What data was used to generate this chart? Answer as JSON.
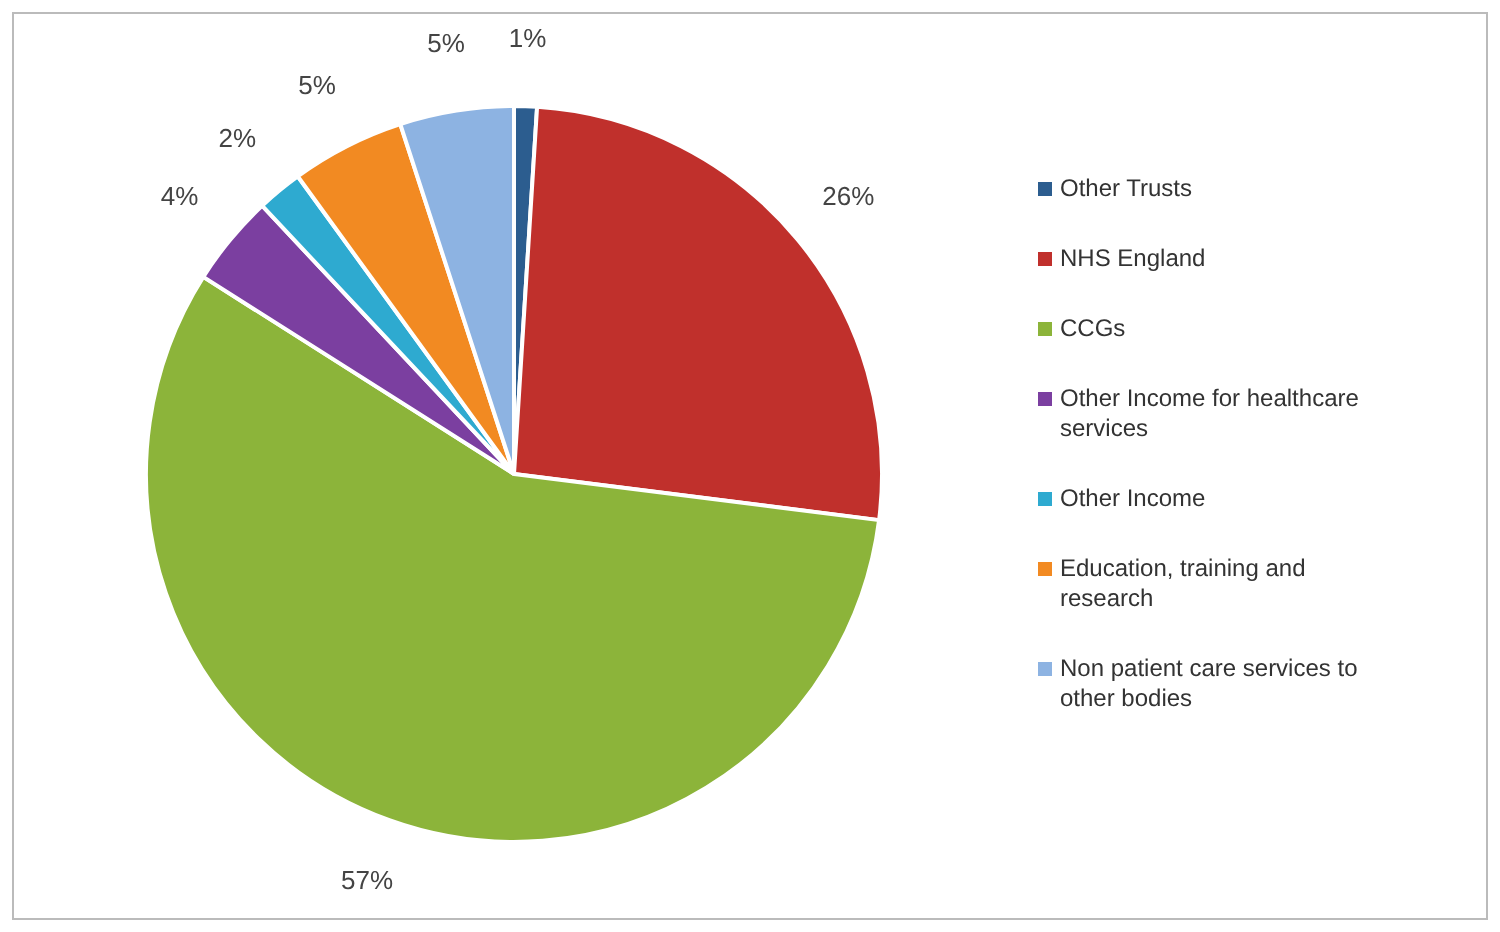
{
  "chart_data": {
    "type": "pie",
    "categories": [
      "Other Trusts",
      "NHS England",
      "CCGs",
      "Other Income for healthcare services",
      "Other Income",
      "Education, training and research",
      "Non patient care services to other bodies"
    ],
    "values": [
      1,
      26,
      57,
      4,
      2,
      5,
      5
    ],
    "colors": [
      "#2c5d8f",
      "#c0302c",
      "#8cb43a",
      "#7b3fa0",
      "#2eaad0",
      "#f28a22",
      "#8db3e2"
    ],
    "value_labels": [
      "1%",
      "26%",
      "57%",
      "4%",
      "2%",
      "5%",
      "5%"
    ],
    "legend": "right"
  }
}
